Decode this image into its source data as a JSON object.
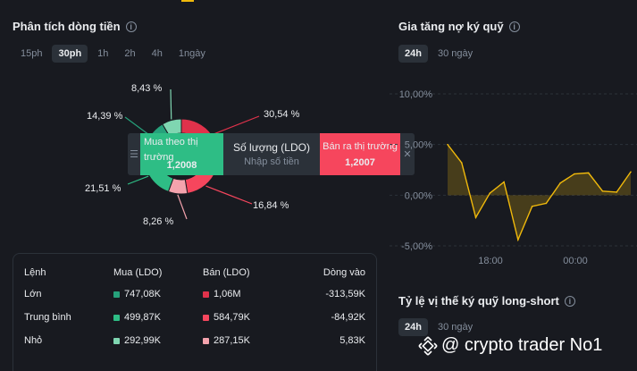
{
  "cashflow": {
    "title": "Phân tích dòng tiền",
    "tabs": [
      "15ph",
      "30ph",
      "1h",
      "2h",
      "4h",
      "1ngày"
    ],
    "active_tab": "30ph",
    "slices": [
      {
        "label": "8,43 %",
        "value": 8.43,
        "color": "#7fd6b1"
      },
      {
        "label": "14,39 %",
        "value": 14.39,
        "color": "#26a17b"
      },
      {
        "label": "30,54 %",
        "value": 30.54,
        "color": "#e0324b"
      },
      {
        "label": "16,84 %",
        "value": 16.84,
        "color": "#f6465d"
      },
      {
        "label": "8,26 %",
        "value": 8.26,
        "color": "#f4a3ad"
      },
      {
        "label": "21,51 %",
        "value": 21.51,
        "color": "#2ebd85"
      }
    ],
    "table": {
      "headers": [
        "Lệnh",
        "Mua (LDO)",
        "Bán (LDO)",
        "Dòng vào"
      ],
      "rows": [
        {
          "name": "Lớn",
          "buy": "747,08K",
          "sell": "1,06M",
          "inflow": "-313,59K",
          "buy_color": "#26a17b",
          "sell_color": "#e0324b"
        },
        {
          "name": "Trung bình",
          "buy": "499,87K",
          "sell": "584,79K",
          "inflow": "-84,92K",
          "buy_color": "#2ebd85",
          "sell_color": "#f6465d"
        },
        {
          "name": "Nhỏ",
          "buy": "292,99K",
          "sell": "287,15K",
          "inflow": "5,83K",
          "buy_color": "#7fd6b1",
          "sell_color": "#f4a3ad"
        }
      ]
    }
  },
  "trade": {
    "buy_label": "Mua theo thị trường",
    "buy_price": "1,2008",
    "qty_label": "Số lượng (LDO)",
    "qty_placeholder": "Nhập số tiền",
    "sell_label": "Bán ra thị trường",
    "sell_price": "1,2007"
  },
  "margin": {
    "title": "Gia tăng nợ ký quỹ",
    "tabs": [
      "24h",
      "30 ngày"
    ],
    "active_tab": "24h",
    "line_color": "#f0b90b"
  },
  "chart_data": {
    "type": "line",
    "title": "Gia tăng nợ ký quỹ",
    "y_ticks": [
      "10,00%",
      "5,00%",
      "0,00%",
      "-5,00%"
    ],
    "x_ticks": [
      "18:00",
      "00:00"
    ],
    "ylim": [
      -5,
      10
    ],
    "values": [
      5.0,
      3.2,
      -2.2,
      0.2,
      1.3,
      -4.4,
      -1.1,
      -0.8,
      1.2,
      2.1,
      2.2,
      0.4,
      0.3,
      2.3
    ],
    "grid": true
  },
  "longshort": {
    "title": "Tỷ lệ vị thế ký quỹ long-short",
    "tabs": [
      "24h",
      "30 ngày"
    ],
    "active_tab": "24h"
  },
  "watermark": "@ crypto trader No1"
}
